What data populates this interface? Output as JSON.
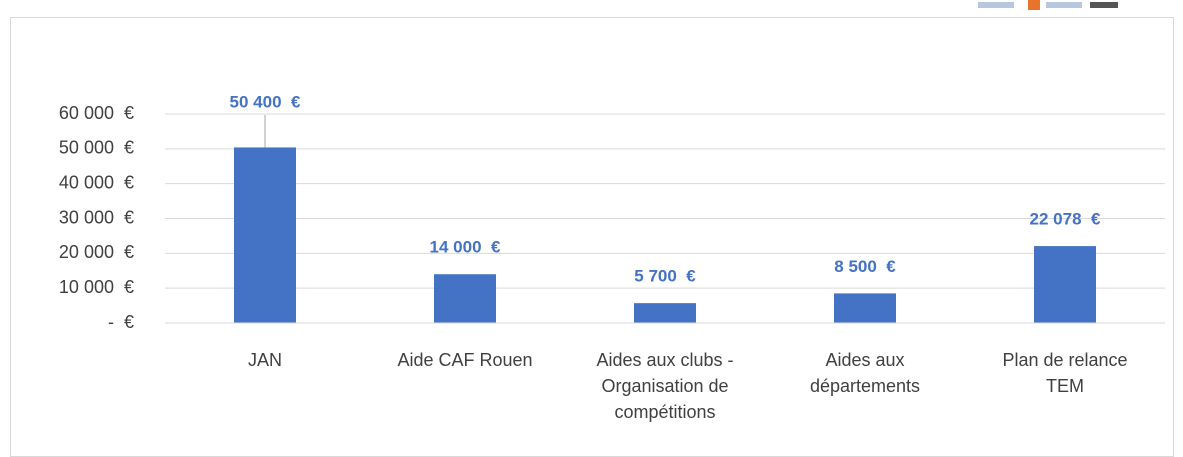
{
  "chart_data": {
    "type": "bar",
    "categories": [
      "JAN",
      "Aide CAF Rouen",
      "Aides aux clubs - Organisation de compétitions",
      "Aides aux départements",
      "Plan de relance TEM"
    ],
    "values": [
      50400,
      14000,
      5700,
      8500,
      22078
    ],
    "value_labels": [
      "50 400  €",
      "14 000  €",
      "5 700  €",
      "8 500  €",
      "22 078  €"
    ],
    "color": "#4472c4",
    "ylim": [
      0,
      60000
    ],
    "yticks": [
      {
        "value": 0,
        "label": "-  €"
      },
      {
        "value": 10000,
        "label": "10 000  €"
      },
      {
        "value": 20000,
        "label": "20 000  €"
      },
      {
        "value": 30000,
        "label": "30 000  €"
      },
      {
        "value": 40000,
        "label": "40 000  €"
      },
      {
        "value": 50000,
        "label": "50 000  €"
      },
      {
        "value": 60000,
        "label": "60 000  €"
      }
    ],
    "grid": true
  }
}
